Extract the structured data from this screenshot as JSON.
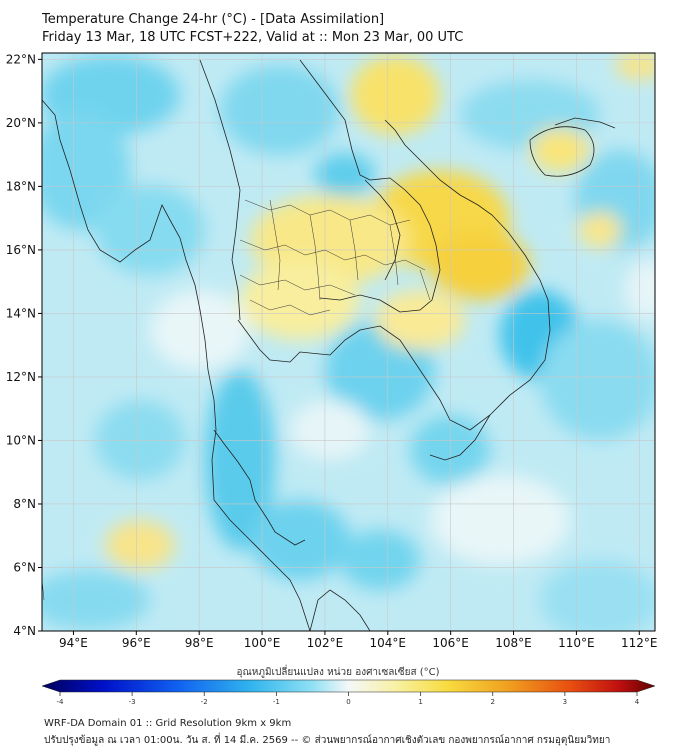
{
  "header": {
    "title_line1": "Temperature Change 24-hr (°C) - [Data Assimilation]",
    "title_line2": "Friday 13 Mar, 18 UTC FCST+222, Valid at :: Mon 23 Mar, 00 UTC"
  },
  "map": {
    "lon_ticks": [
      "94°E",
      "96°E",
      "98°E",
      "100°E",
      "102°E",
      "104°E",
      "106°E",
      "108°E",
      "110°E",
      "112°E"
    ],
    "lat_ticks": [
      "22°N",
      "20°N",
      "18°N",
      "16°N",
      "14°N",
      "12°N",
      "10°N",
      "8°N",
      "6°N",
      "4°N"
    ],
    "lon_values": [
      94,
      96,
      98,
      100,
      102,
      104,
      106,
      108,
      110,
      112
    ],
    "lat_values": [
      22,
      20,
      18,
      16,
      14,
      12,
      10,
      8,
      6,
      4
    ],
    "lon_range": [
      93,
      112.5
    ],
    "lat_range": [
      4,
      22.2
    ],
    "colors": {
      "cool": "#7fd8ef",
      "neutral": "#eef7f9",
      "warm": "#f7de5a",
      "border": "#222222"
    }
  },
  "colorbar": {
    "label": "อุณหภูมิเปลี่ยนแปลง หน่วย องศาเซลเซียส (°C)",
    "ticks": [
      "-4",
      "-3",
      "-2",
      "-1",
      "0",
      "1",
      "2",
      "3",
      "4"
    ],
    "tick_values": [
      -4,
      -3,
      -2,
      -1,
      0,
      1,
      2,
      3,
      4
    ],
    "range": [
      -4,
      4
    ]
  },
  "footer": {
    "line1": "WRF-DA Domain 01 :: Grid Resolution 9km x 9km",
    "line2": "ปรับปรุงข้อมูล ณ เวลา 01:00น. วัน ส. ที่ 14 มี.ค. 2569 -- © ส่วนพยากรณ์อากาศเชิงตัวเลข กองพยากรณ์อากาศ กรมอุตุนิยมวิทยา"
  }
}
